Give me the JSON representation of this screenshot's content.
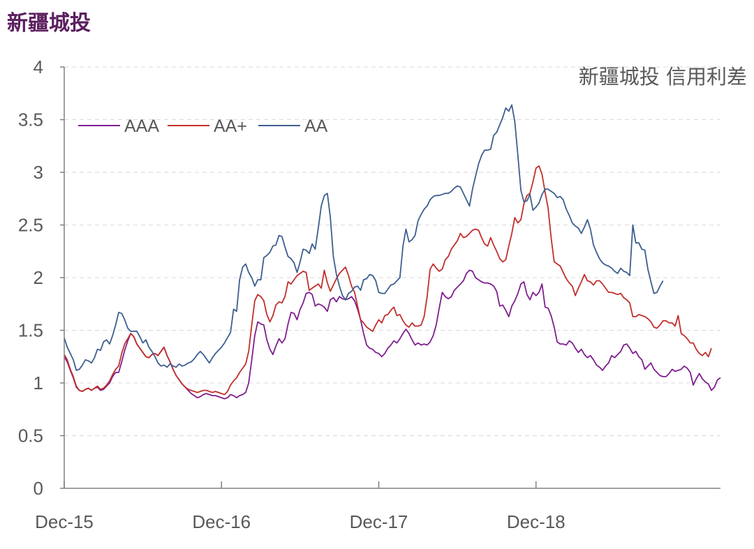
{
  "header": {
    "title": "新疆城投"
  },
  "colors": {
    "AAA": "#7f1f8f",
    "AA+": "#c0302c",
    "AA": "#3d5f8f",
    "axis": "#808080",
    "grid": "#d9d9d9",
    "text": "#595959",
    "title": "#5b1f5e"
  },
  "chart_data": {
    "type": "line",
    "title": "新疆城投 信用利差",
    "xlabel": "",
    "ylabel": "",
    "ylim": [
      0,
      4
    ],
    "yticks": [
      "0",
      "0.5",
      "1",
      "1.5",
      "2",
      "2.5",
      "3",
      "3.5",
      "4"
    ],
    "xticks": [
      "Dec-15",
      "Dec-16",
      "Dec-17",
      "Dec-18"
    ],
    "legend": "top-left",
    "grid": "horizontal-dashed",
    "x_start": "2015-12",
    "x_step_weeks": 1,
    "series": [
      {
        "name": "AAA",
        "values": [
          1.25,
          1.2,
          1.12,
          1.05,
          0.96,
          0.93,
          0.92,
          0.94,
          0.95,
          0.93,
          0.95,
          0.96,
          0.93,
          0.94,
          0.97,
          1.0,
          1.06,
          1.1,
          1.1,
          1.2,
          1.31,
          1.4,
          1.47,
          1.44,
          1.37,
          1.33,
          1.29,
          1.25,
          1.24,
          1.27,
          1.28,
          1.26,
          1.3,
          1.34,
          1.26,
          1.2,
          1.13,
          1.07,
          1.03,
          0.99,
          0.96,
          0.93,
          0.9,
          0.88,
          0.86,
          0.87,
          0.89,
          0.9,
          0.89,
          0.88,
          0.88,
          0.87,
          0.86,
          0.85,
          0.86,
          0.89,
          0.88,
          0.86,
          0.88,
          0.89,
          0.91,
          1.0,
          1.22,
          1.45,
          1.58,
          1.56,
          1.55,
          1.41,
          1.32,
          1.27,
          1.35,
          1.42,
          1.38,
          1.42,
          1.56,
          1.67,
          1.66,
          1.6,
          1.7,
          1.76,
          1.85,
          1.86,
          1.84,
          1.73,
          1.75,
          1.74,
          1.72,
          1.68,
          1.79,
          1.81,
          1.77,
          1.82,
          1.8,
          1.79,
          1.8,
          1.82,
          1.78,
          1.7,
          1.6,
          1.47,
          1.36,
          1.33,
          1.32,
          1.29,
          1.28,
          1.25,
          1.28,
          1.33,
          1.36,
          1.4,
          1.38,
          1.42,
          1.47,
          1.51,
          1.47,
          1.41,
          1.36,
          1.38,
          1.36,
          1.37,
          1.36,
          1.39,
          1.45,
          1.55,
          1.71,
          1.86,
          1.82,
          1.8,
          1.82,
          1.88,
          1.91,
          1.94,
          1.97,
          2.04,
          2.07,
          2.06,
          2.0,
          1.98,
          1.96,
          1.95,
          1.95,
          1.94,
          1.92,
          1.87,
          1.73,
          1.74,
          1.69,
          1.63,
          1.73,
          1.78,
          1.85,
          1.94,
          1.96,
          1.84,
          1.79,
          1.86,
          1.83,
          1.86,
          1.94,
          1.72,
          1.71,
          1.64,
          1.53,
          1.39,
          1.37,
          1.37,
          1.36,
          1.4,
          1.38,
          1.33,
          1.29,
          1.32,
          1.27,
          1.24,
          1.26,
          1.22,
          1.17,
          1.15,
          1.12,
          1.16,
          1.19,
          1.26,
          1.24,
          1.27,
          1.3,
          1.36,
          1.37,
          1.33,
          1.28,
          1.3,
          1.25,
          1.22,
          1.13,
          1.16,
          1.19,
          1.13,
          1.1,
          1.07,
          1.06,
          1.06,
          1.09,
          1.13,
          1.11,
          1.12,
          1.13,
          1.16,
          1.14,
          1.1,
          0.98,
          1.04,
          1.09,
          1.04,
          1.01,
          0.99,
          0.93,
          0.96,
          1.03,
          1.05
        ]
      },
      {
        "name": "AA+",
        "values": [
          1.27,
          1.22,
          1.13,
          1.06,
          0.97,
          0.93,
          0.92,
          0.94,
          0.95,
          0.93,
          0.95,
          0.97,
          0.94,
          0.95,
          0.98,
          1.02,
          1.08,
          1.13,
          1.16,
          1.28,
          1.37,
          1.42,
          1.47,
          1.44,
          1.37,
          1.33,
          1.29,
          1.25,
          1.24,
          1.27,
          1.28,
          1.26,
          1.3,
          1.34,
          1.26,
          1.2,
          1.13,
          1.07,
          1.03,
          0.99,
          0.96,
          0.94,
          0.93,
          0.92,
          0.91,
          0.92,
          0.93,
          0.93,
          0.92,
          0.91,
          0.92,
          0.91,
          0.9,
          0.89,
          0.92,
          0.98,
          1.02,
          1.05,
          1.1,
          1.14,
          1.18,
          1.3,
          1.55,
          1.78,
          1.84,
          1.82,
          1.78,
          1.65,
          1.58,
          1.64,
          1.74,
          1.77,
          1.76,
          1.82,
          1.96,
          1.94,
          1.98,
          2.02,
          2.04,
          2.06,
          2.05,
          1.88,
          1.9,
          1.92,
          1.94,
          1.9,
          2.07,
          1.95,
          1.87,
          1.93,
          1.99,
          2.04,
          2.07,
          2.1,
          2.02,
          1.92,
          1.86,
          1.73,
          1.6,
          1.57,
          1.53,
          1.51,
          1.49,
          1.55,
          1.6,
          1.57,
          1.64,
          1.65,
          1.69,
          1.72,
          1.64,
          1.65,
          1.59,
          1.55,
          1.53,
          1.57,
          1.54,
          1.54,
          1.55,
          1.63,
          1.82,
          2.08,
          2.13,
          2.09,
          2.06,
          2.08,
          2.17,
          2.2,
          2.27,
          2.31,
          2.35,
          2.42,
          2.38,
          2.39,
          2.42,
          2.45,
          2.46,
          2.45,
          2.38,
          2.32,
          2.3,
          2.38,
          2.31,
          2.25,
          2.18,
          2.15,
          2.17,
          2.3,
          2.42,
          2.57,
          2.52,
          2.55,
          2.7,
          2.78,
          2.8,
          2.91,
          3.04,
          3.06,
          2.98,
          2.81,
          2.66,
          2.38,
          2.15,
          2.13,
          2.11,
          2.05,
          1.99,
          1.95,
          1.92,
          1.83,
          1.9,
          1.96,
          2.03,
          1.97,
          1.96,
          1.93,
          1.97,
          1.97,
          1.94,
          1.9,
          1.86,
          1.86,
          1.85,
          1.84,
          1.85,
          1.81,
          1.79,
          1.76,
          1.63,
          1.63,
          1.65,
          1.64,
          1.63,
          1.61,
          1.58,
          1.53,
          1.52,
          1.55,
          1.59,
          1.59,
          1.57,
          1.57,
          1.54,
          1.64,
          1.47,
          1.45,
          1.42,
          1.38,
          1.38,
          1.32,
          1.28,
          1.26,
          1.29,
          1.25,
          1.33
        ]
      },
      {
        "name": "AA",
        "values": [
          1.43,
          1.34,
          1.28,
          1.22,
          1.12,
          1.13,
          1.17,
          1.22,
          1.21,
          1.19,
          1.24,
          1.32,
          1.31,
          1.39,
          1.41,
          1.37,
          1.45,
          1.55,
          1.67,
          1.66,
          1.6,
          1.52,
          1.49,
          1.49,
          1.49,
          1.44,
          1.38,
          1.41,
          1.34,
          1.3,
          1.25,
          1.19,
          1.16,
          1.17,
          1.15,
          1.18,
          1.16,
          1.15,
          1.18,
          1.16,
          1.17,
          1.19,
          1.2,
          1.23,
          1.27,
          1.3,
          1.27,
          1.23,
          1.19,
          1.24,
          1.28,
          1.31,
          1.34,
          1.38,
          1.43,
          1.48,
          1.7,
          1.68,
          1.98,
          2.1,
          2.13,
          2.05,
          2.0,
          1.92,
          1.98,
          1.98,
          2.19,
          2.21,
          2.24,
          2.3,
          2.31,
          2.4,
          2.39,
          2.29,
          2.2,
          2.18,
          2.14,
          2.05,
          2.15,
          2.27,
          2.26,
          2.23,
          2.32,
          2.27,
          2.47,
          2.68,
          2.78,
          2.8,
          2.57,
          2.2,
          2.03,
          1.92,
          1.83,
          1.79,
          1.85,
          1.87,
          1.91,
          1.92,
          1.88,
          1.98,
          1.99,
          2.03,
          2.02,
          1.97,
          1.86,
          1.85,
          1.85,
          1.89,
          1.93,
          1.94,
          1.97,
          2.0,
          2.3,
          2.46,
          2.34,
          2.36,
          2.4,
          2.54,
          2.6,
          2.65,
          2.68,
          2.74,
          2.77,
          2.78,
          2.78,
          2.79,
          2.8,
          2.8,
          2.82,
          2.85,
          2.87,
          2.86,
          2.8,
          2.74,
          2.68,
          2.84,
          2.96,
          3.08,
          3.16,
          3.21,
          3.21,
          3.22,
          3.35,
          3.38,
          3.45,
          3.52,
          3.61,
          3.58,
          3.64,
          3.48,
          3.16,
          2.83,
          2.72,
          2.73,
          2.79,
          2.64,
          2.67,
          2.71,
          2.79,
          2.84,
          2.84,
          2.82,
          2.8,
          2.76,
          2.77,
          2.74,
          2.65,
          2.59,
          2.52,
          2.49,
          2.47,
          2.42,
          2.48,
          2.55,
          2.46,
          2.31,
          2.24,
          2.18,
          2.14,
          2.12,
          2.11,
          2.09,
          2.06,
          2.04,
          2.09,
          2.06,
          2.05,
          2.02,
          2.5,
          2.33,
          2.33,
          2.27,
          2.26,
          2.08,
          1.96,
          1.85,
          1.86,
          1.92,
          1.97
        ]
      }
    ]
  }
}
